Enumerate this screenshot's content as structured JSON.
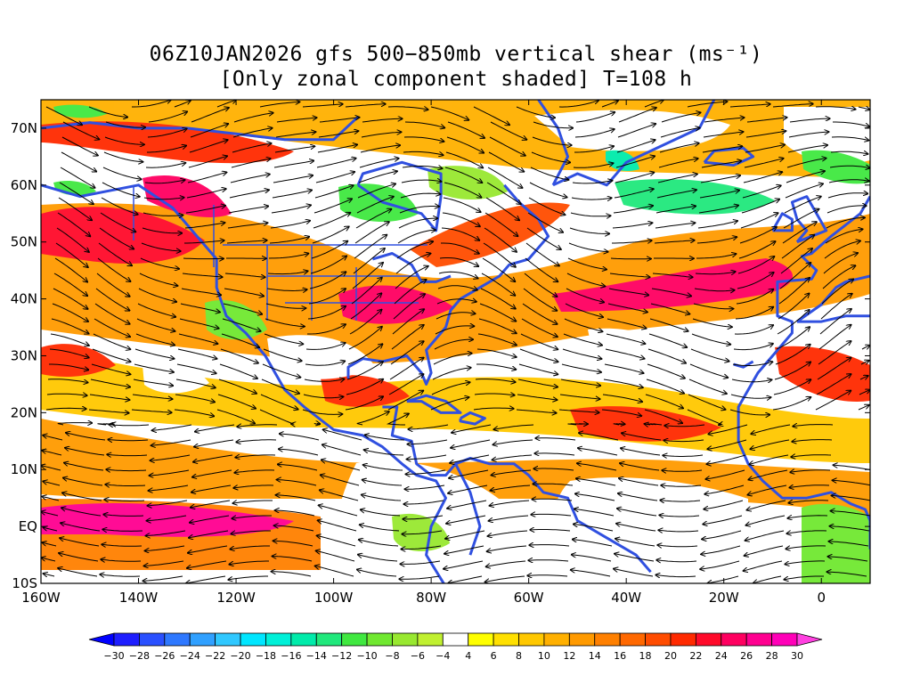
{
  "title": {
    "line1": "06Z10JAN2026 gfs 500−850mb vertical shear (ms⁻¹)",
    "line2": "[Only zonal component shaded] T=108 h"
  },
  "axes": {
    "y_ticks": [
      "70N",
      "60N",
      "50N",
      "40N",
      "30N",
      "20N",
      "10N",
      "EQ",
      "10S"
    ],
    "y_values": [
      70,
      60,
      50,
      40,
      30,
      20,
      10,
      0,
      -10
    ],
    "x_ticks": [
      "160W",
      "140W",
      "120W",
      "100W",
      "80W",
      "60W",
      "40W",
      "20W",
      "0"
    ],
    "x_values": [
      -160,
      -140,
      -120,
      -100,
      -80,
      -60,
      -40,
      -20,
      0
    ],
    "lon_range": [
      -160,
      10
    ],
    "lat_range": [
      -10,
      75
    ]
  },
  "colorbar": {
    "labels": [
      "−30",
      "−28",
      "−26",
      "−24",
      "−22",
      "−20",
      "−18",
      "−16",
      "−14",
      "−12",
      "−10",
      "−8",
      "−6",
      "−4",
      "4",
      "6",
      "8",
      "10",
      "12",
      "14",
      "16",
      "18",
      "20",
      "22",
      "24",
      "26",
      "28",
      "30"
    ],
    "colors": [
      "#1e1eff",
      "#2a50ff",
      "#2e78ff",
      "#30a0ff",
      "#30c8ff",
      "#00e6ff",
      "#00f0d8",
      "#00ebaa",
      "#20e87c",
      "#40e840",
      "#70e830",
      "#98e830",
      "#c0f030",
      "#ffffff",
      "#ffff00",
      "#ffe000",
      "#ffc800",
      "#ffb000",
      "#ff9a00",
      "#ff8000",
      "#ff6800",
      "#ff4c00",
      "#ff2a00",
      "#ff0a2a",
      "#ff0060",
      "#ff0090",
      "#ff00b8"
    ],
    "min_color": "#0000ff",
    "max_color": "#ff40e0"
  },
  "colors": {
    "coastline": "#3050e0",
    "streamline": "#000000"
  }
}
